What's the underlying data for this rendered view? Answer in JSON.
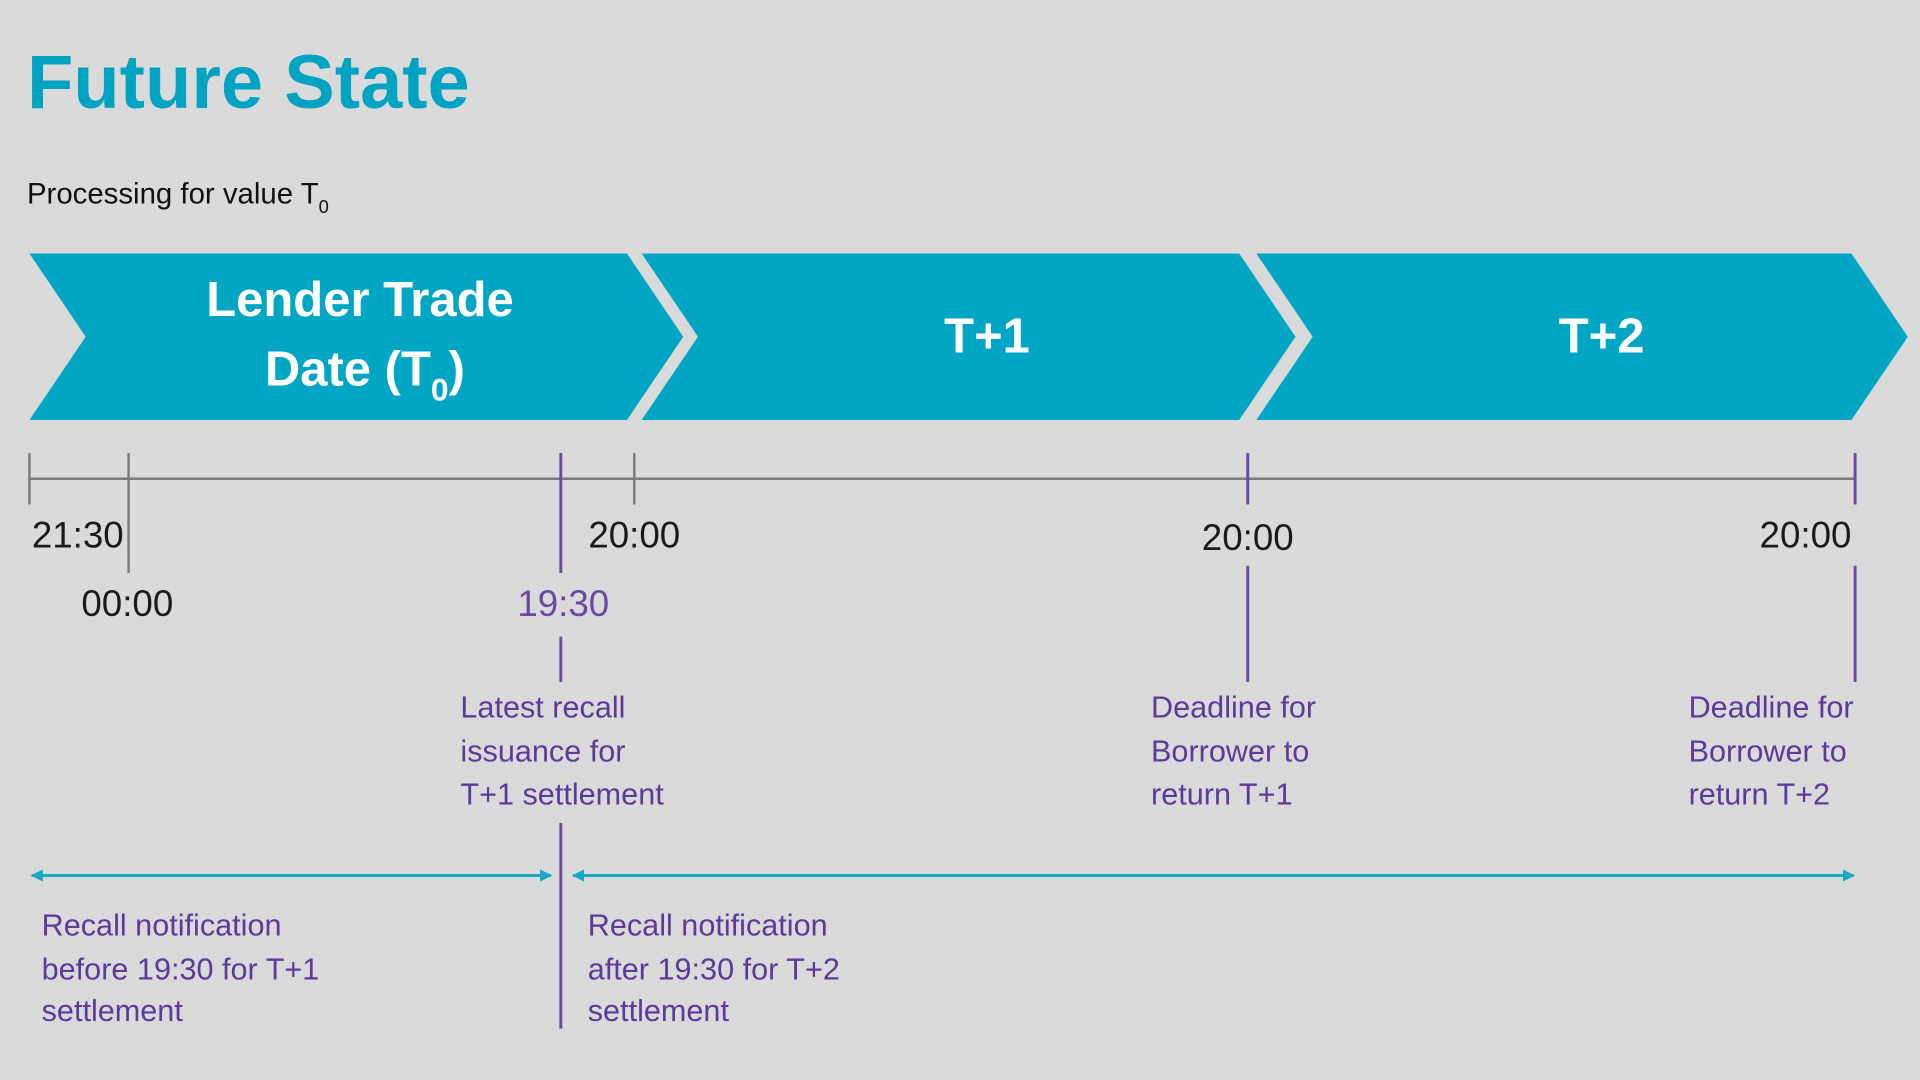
{
  "title": "Future State",
  "subtitle": {
    "text": "Processing for value T",
    "subscript": "0"
  },
  "phases": [
    {
      "line1": "Lender Trade",
      "line2": "Date (T",
      "line2_sub": "0",
      "line2_end": ")"
    },
    {
      "label": "T+1"
    },
    {
      "label": "T+2"
    }
  ],
  "times": {
    "t2130": "21:30",
    "t0000": "00:00",
    "t1930": "19:30",
    "t2000a": "20:00",
    "t2000b": "20:00",
    "t2000c": "20:00"
  },
  "notes": {
    "recall_latest": [
      "Latest recall",
      "issuance for",
      "T+1 settlement"
    ],
    "deadline_t1": [
      "Deadline for",
      "Borrower to",
      "return T+1"
    ],
    "deadline_t2": [
      "Deadline for",
      "Borrower to",
      "return T+2"
    ],
    "before": [
      "Recall notification",
      "before 19:30 for T+1",
      "settlement"
    ],
    "after": [
      "Recall notification",
      "after 19:30 for T+2",
      "settlement"
    ]
  },
  "colors": {
    "teal": "#00a6c3",
    "purple": "#6a4aa0",
    "background": "#dadada"
  }
}
